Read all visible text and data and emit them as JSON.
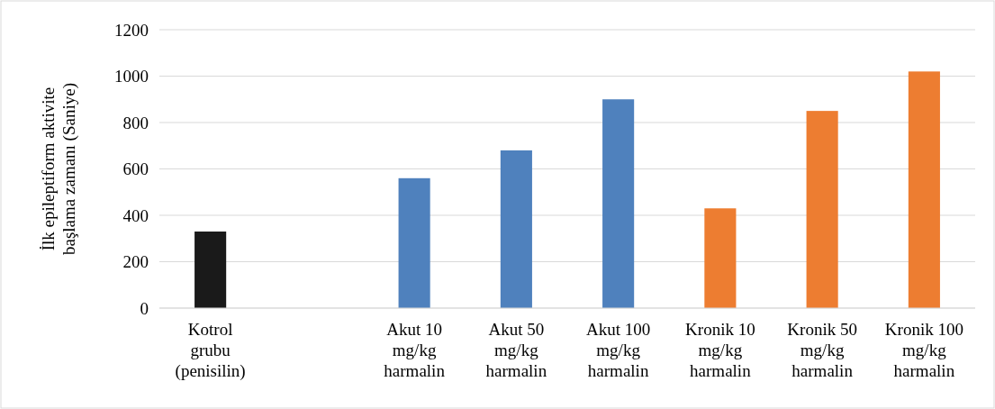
{
  "chart_data": {
    "type": "bar",
    "categories": [
      "Kotrol grubu (penisilin)",
      null,
      "Akut 10 mg/kg harmalin",
      "Akut 50 mg/kg harmalin",
      "Akut 100 mg/kg harmalin",
      "Kronik 10 mg/kg harmalin",
      "Kronik 50 mg/kg harmalin",
      "Kronik 100 mg/kg harmalin"
    ],
    "values": [
      330,
      null,
      560,
      680,
      900,
      430,
      850,
      1020
    ],
    "colors": [
      "#1a1a1a",
      null,
      "#4f81bd",
      "#4f81bd",
      "#4f81bd",
      "#ed7d31",
      "#ed7d31",
      "#ed7d31"
    ],
    "ylabel": "İlk epileptiform aktivite başlama zamanı (Saniye)",
    "ylim": [
      0,
      1200
    ],
    "yticks": [
      0,
      200,
      400,
      600,
      800,
      1000,
      1200
    ],
    "grid": "y"
  }
}
